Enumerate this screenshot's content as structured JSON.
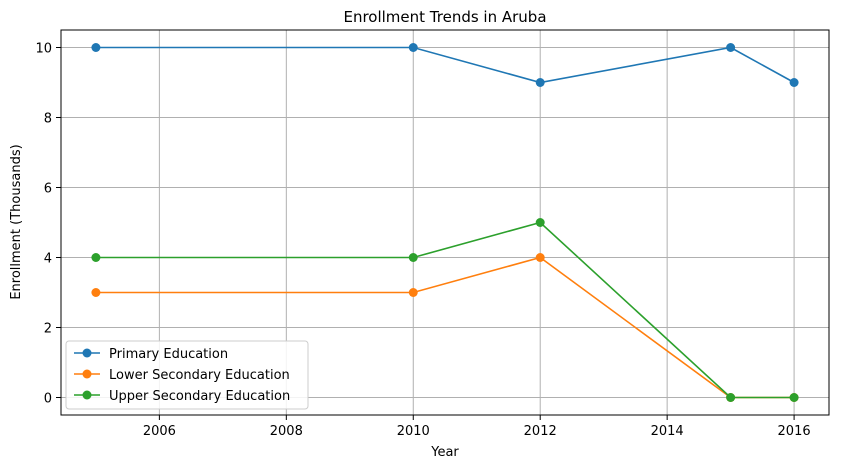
{
  "chart_data": {
    "type": "line",
    "title": "Enrollment Trends in Aruba",
    "xlabel": "Year",
    "ylabel": "Enrollment (Thousands)",
    "x": [
      2005,
      2010,
      2012,
      2015,
      2016
    ],
    "xlim": [
      2004.45,
      2016.55
    ],
    "ylim": [
      -0.5,
      10.5
    ],
    "xticks": [
      2006,
      2008,
      2010,
      2012,
      2014,
      2016
    ],
    "yticks": [
      0,
      2,
      4,
      6,
      8,
      10
    ],
    "grid": true,
    "legend_position": "lower-left",
    "series": [
      {
        "name": "Primary Education",
        "color": "#1f77b4",
        "values": [
          10,
          10,
          9,
          10,
          9
        ]
      },
      {
        "name": "Lower Secondary Education",
        "color": "#ff7f0e",
        "values": [
          3,
          3,
          4,
          0,
          0
        ]
      },
      {
        "name": "Upper Secondary Education",
        "color": "#2ca02c",
        "values": [
          4,
          4,
          5,
          0,
          0
        ]
      }
    ]
  }
}
